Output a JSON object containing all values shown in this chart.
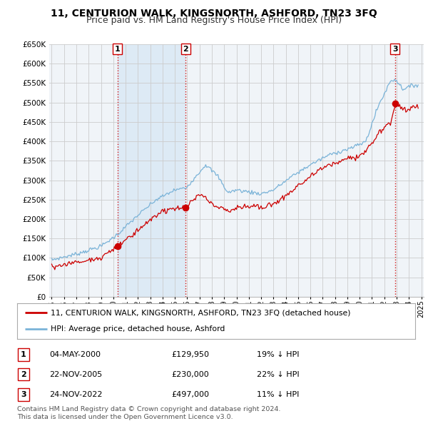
{
  "title": "11, CENTURION WALK, KINGSNORTH, ASHFORD, TN23 3FQ",
  "subtitle": "Price paid vs. HM Land Registry's House Price Index (HPI)",
  "ylim": [
    0,
    650000
  ],
  "yticks": [
    0,
    50000,
    100000,
    150000,
    200000,
    250000,
    300000,
    350000,
    400000,
    450000,
    500000,
    550000,
    600000,
    650000
  ],
  "ytick_labels": [
    "£0",
    "£50K",
    "£100K",
    "£150K",
    "£200K",
    "£250K",
    "£300K",
    "£350K",
    "£400K",
    "£450K",
    "£500K",
    "£550K",
    "£600K",
    "£650K"
  ],
  "sale_prices": [
    129950,
    230000,
    497000
  ],
  "sale_labels": [
    "1",
    "2",
    "3"
  ],
  "sale_color": "#cc0000",
  "hpi_color": "#7ab3d8",
  "grid_color": "#cccccc",
  "vline_color": "#cc0000",
  "background_color": "#f0f4f8",
  "shade_color": "#ddeaf5",
  "legend_label_red": "11, CENTURION WALK, KINGSNORTH, ASHFORD, TN23 3FQ (detached house)",
  "legend_label_blue": "HPI: Average price, detached house, Ashford",
  "table_data": [
    [
      "1",
      "04-MAY-2000",
      "£129,950",
      "19% ↓ HPI"
    ],
    [
      "2",
      "22-NOV-2005",
      "£230,000",
      "22% ↓ HPI"
    ],
    [
      "3",
      "24-NOV-2022",
      "£497,000",
      "11% ↓ HPI"
    ]
  ],
  "footnote": "Contains HM Land Registry data © Crown copyright and database right 2024.\nThis data is licensed under the Open Government Licence v3.0.",
  "title_fontsize": 10,
  "subtitle_fontsize": 9
}
